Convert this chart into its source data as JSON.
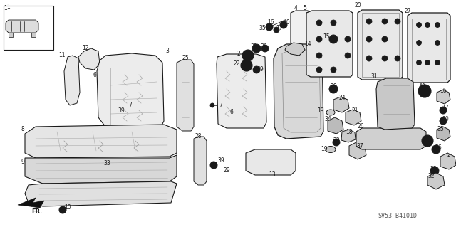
{
  "fig_width": 6.4,
  "fig_height": 3.19,
  "dpi": 100,
  "bg_color": "#ffffff",
  "diagram_code": "SV53-B4101D",
  "line_color": "#1a1a1a",
  "text_color": "#1a1a1a",
  "font_size_parts": 5.5,
  "font_size_code": 6.0
}
